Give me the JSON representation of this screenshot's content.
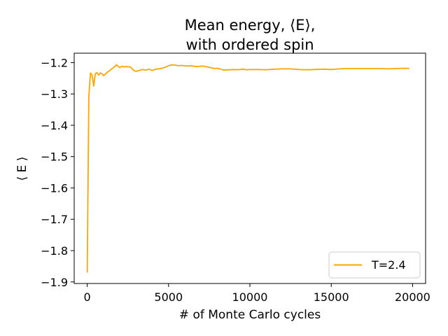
{
  "chart_data": {
    "type": "line",
    "title_line1": "Mean energy, ⟨E⟩,",
    "title_line2": "with ordered spin",
    "xlabel": "# of Monte Carlo cycles",
    "ylabel": "⟨ E ⟩",
    "xlim": [
      -800,
      20800
    ],
    "ylim": [
      -1.905,
      -1.17
    ],
    "xticks": [
      0,
      5000,
      10000,
      15000,
      20000
    ],
    "xtick_labels": [
      "0",
      "5000",
      "10000",
      "15000",
      "20000"
    ],
    "yticks": [
      -1.9,
      -1.8,
      -1.7,
      -1.6,
      -1.5,
      -1.4,
      -1.3,
      -1.2
    ],
    "ytick_labels": [
      "−1.9",
      "−1.8",
      "−1.7",
      "−1.6",
      "−1.5",
      "−1.4",
      "−1.3",
      "−1.2"
    ],
    "grid": false,
    "legend_position": "lower-right",
    "series": [
      {
        "name": "T=2.4",
        "color": "#ffa500",
        "x": [
          0,
          100,
          200,
          300,
          400,
          500,
          600,
          700,
          800,
          900,
          1000,
          1100,
          1200,
          1300,
          1400,
          1500,
          1600,
          1700,
          1800,
          1900,
          2000,
          2100,
          2200,
          2300,
          2400,
          2500,
          2600,
          2700,
          2800,
          2900,
          3000,
          3200,
          3400,
          3600,
          3800,
          4000,
          4200,
          4400,
          4600,
          4800,
          5000,
          5200,
          5400,
          5600,
          5800,
          6000,
          6200,
          6400,
          6600,
          6800,
          7000,
          7200,
          7400,
          7600,
          7800,
          8000,
          8200,
          8400,
          8600,
          8800,
          9000,
          9200,
          9400,
          9600,
          9800,
          10000,
          10500,
          11000,
          11500,
          12000,
          12500,
          13000,
          13500,
          14000,
          14500,
          15000,
          15500,
          16000,
          16500,
          17000,
          17500,
          18000,
          18500,
          19000,
          19500,
          19800
        ],
        "y": [
          -1.87,
          -1.31,
          -1.233,
          -1.24,
          -1.275,
          -1.235,
          -1.232,
          -1.24,
          -1.233,
          -1.235,
          -1.242,
          -1.238,
          -1.232,
          -1.228,
          -1.225,
          -1.22,
          -1.217,
          -1.212,
          -1.207,
          -1.212,
          -1.216,
          -1.213,
          -1.212,
          -1.214,
          -1.212,
          -1.214,
          -1.213,
          -1.216,
          -1.222,
          -1.226,
          -1.228,
          -1.225,
          -1.222,
          -1.224,
          -1.221,
          -1.225,
          -1.221,
          -1.22,
          -1.218,
          -1.215,
          -1.21,
          -1.207,
          -1.208,
          -1.21,
          -1.209,
          -1.21,
          -1.211,
          -1.21,
          -1.212,
          -1.213,
          -1.211,
          -1.212,
          -1.214,
          -1.216,
          -1.219,
          -1.218,
          -1.221,
          -1.224,
          -1.223,
          -1.223,
          -1.222,
          -1.223,
          -1.222,
          -1.221,
          -1.223,
          -1.222,
          -1.222,
          -1.223,
          -1.221,
          -1.22,
          -1.22,
          -1.222,
          -1.223,
          -1.222,
          -1.221,
          -1.222,
          -1.22,
          -1.219,
          -1.219,
          -1.219,
          -1.219,
          -1.219,
          -1.22,
          -1.219,
          -1.218,
          -1.219
        ]
      }
    ]
  }
}
